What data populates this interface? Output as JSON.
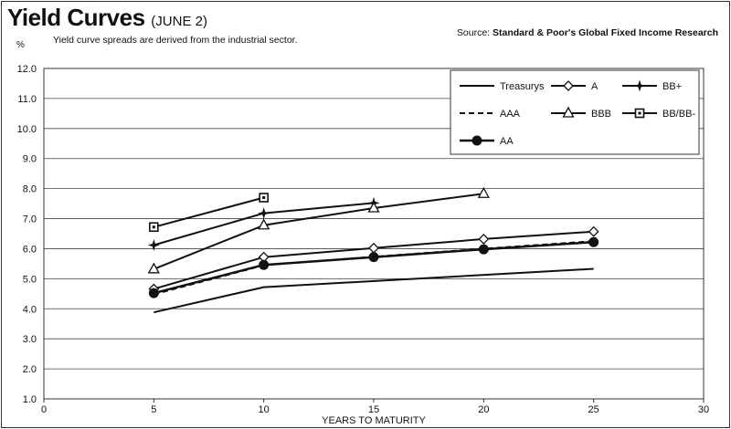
{
  "header": {
    "title": "Yield Curves",
    "subtitle": "(JUNE 2)",
    "note": "Yield curve spreads are derived from the industrial sector.",
    "source_prefix": "Source: ",
    "source_name": "Standard & Poor's Global Fixed Income Research"
  },
  "chart_data": {
    "type": "line",
    "title": "Yield Curves",
    "subtitle": "(JUNE 2)",
    "xlabel": "YEARS TO MATURITY",
    "ylabel": "%",
    "xlim": [
      0,
      30
    ],
    "ylim": [
      1.0,
      12.0
    ],
    "xticks": [
      0,
      5,
      10,
      15,
      20,
      25,
      30
    ],
    "yticks": [
      1.0,
      2.0,
      3.0,
      4.0,
      5.0,
      6.0,
      7.0,
      8.0,
      9.0,
      10.0,
      11.0,
      12.0
    ],
    "grid": "horizontal",
    "legend_position": "top-right",
    "series": [
      {
        "name": "Treasurys",
        "marker": "none",
        "dash": "solid",
        "stroke_width": 2,
        "points": [
          [
            5,
            3.88
          ],
          [
            10,
            4.72
          ],
          [
            25,
            5.33
          ]
        ]
      },
      {
        "name": "A",
        "marker": "diamond",
        "dash": "solid",
        "stroke_width": 2,
        "points": [
          [
            5,
            4.66
          ],
          [
            10,
            5.72
          ],
          [
            15,
            6.02
          ],
          [
            20,
            6.32
          ],
          [
            25,
            6.57
          ]
        ]
      },
      {
        "name": "BB+",
        "marker": "star",
        "dash": "solid",
        "stroke_width": 2,
        "points": [
          [
            5,
            6.12
          ],
          [
            10,
            7.18
          ],
          [
            15,
            7.52
          ]
        ]
      },
      {
        "name": "AAA",
        "marker": "none",
        "dash": "dashed",
        "stroke_width": 2,
        "points": [
          [
            5,
            4.48
          ],
          [
            10,
            5.45
          ],
          [
            15,
            5.73
          ],
          [
            20,
            6.0
          ],
          [
            25,
            6.25
          ]
        ]
      },
      {
        "name": "BBB",
        "marker": "triangle",
        "dash": "solid",
        "stroke_width": 2,
        "points": [
          [
            5,
            5.32
          ],
          [
            10,
            6.78
          ],
          [
            15,
            7.35
          ],
          [
            20,
            7.83
          ]
        ]
      },
      {
        "name": "BB/BB-",
        "marker": "square",
        "dash": "solid",
        "stroke_width": 2,
        "points": [
          [
            5,
            6.72
          ],
          [
            10,
            7.7
          ]
        ]
      },
      {
        "name": "AA",
        "marker": "circle",
        "dash": "solid",
        "stroke_width": 2.5,
        "points": [
          [
            5,
            4.52
          ],
          [
            10,
            5.46
          ],
          [
            15,
            5.72
          ],
          [
            20,
            5.98
          ],
          [
            25,
            6.22
          ]
        ]
      }
    ]
  }
}
